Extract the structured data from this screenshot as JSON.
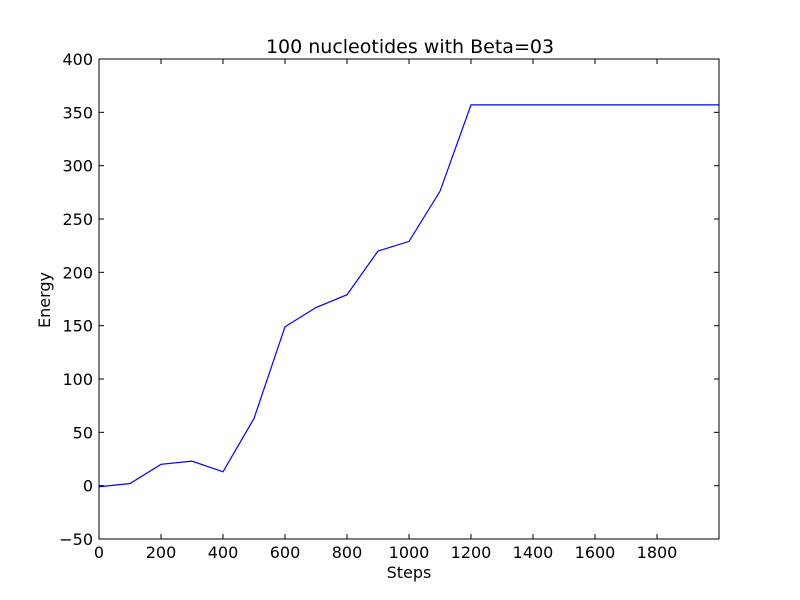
{
  "chart_data": {
    "type": "line",
    "title": "100 nucleotides with Beta=03",
    "xlabel": "Steps",
    "ylabel": "Energy",
    "xlim": [
      0,
      2000
    ],
    "ylim": [
      -50,
      400
    ],
    "xticks": [
      0,
      200,
      400,
      600,
      800,
      1000,
      1200,
      1400,
      1600,
      1800
    ],
    "xtick_labels": [
      "0",
      "200",
      "400",
      "600",
      "800",
      "1000",
      "1200",
      "1400",
      "1600",
      "1800"
    ],
    "yticks": [
      -50,
      0,
      50,
      100,
      150,
      200,
      250,
      300,
      350,
      400
    ],
    "ytick_labels": [
      "−50",
      "0",
      "50",
      "100",
      "150",
      "200",
      "250",
      "300",
      "350",
      "400"
    ],
    "grid": false,
    "series": [
      {
        "color": "#0000ff",
        "x": [
          0,
          100,
          200,
          300,
          400,
          500,
          600,
          700,
          800,
          900,
          1000,
          1100,
          1200,
          1300,
          1400,
          1500,
          1600,
          1700,
          1800,
          1900,
          2000
        ],
        "y": [
          -1,
          2,
          20,
          23,
          13,
          63,
          149,
          167,
          179,
          220,
          229,
          276,
          357,
          357,
          357,
          357,
          357,
          357,
          357,
          357,
          357
        ]
      }
    ]
  }
}
